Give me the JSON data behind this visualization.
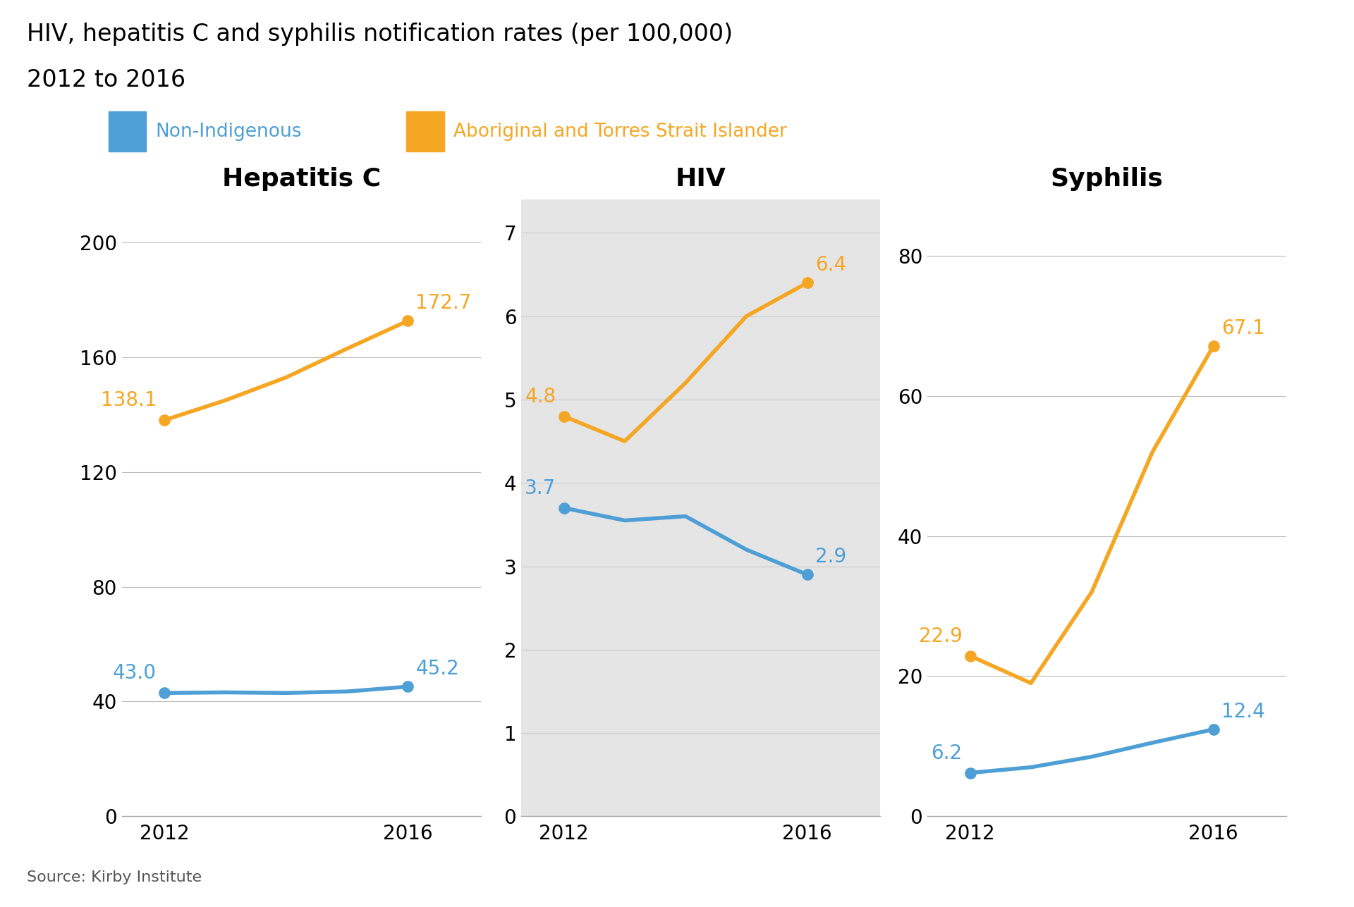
{
  "title_line1": "HIV, hepatitis C and syphilis notification rates (per 100,000)",
  "title_line2": "2012 to 2016",
  "source": "Source: Kirby Institute",
  "legend_labels": [
    "Non-Indigenous",
    "Aboriginal and Torres Strait Islander"
  ],
  "blue_color": "#4D9FD6",
  "orange_color": "#F5A623",
  "background_color": "#FFFFFF",
  "hiv_bg_color": "#E5E5E5",
  "charts": [
    {
      "title": "Hepatitis C",
      "x": [
        2012,
        2013,
        2014,
        2015,
        2016
      ],
      "blue_y": [
        43.0,
        43.2,
        43.0,
        43.5,
        45.2
      ],
      "orange_y": [
        138.1,
        145.0,
        153.0,
        163.0,
        172.7
      ],
      "blue_label_start": "43.0",
      "blue_label_end": "45.2",
      "orange_label_start": "138.1",
      "orange_label_end": "172.7",
      "ylim": [
        0,
        215
      ],
      "yticks": [
        0,
        40,
        80,
        120,
        160,
        200
      ],
      "highlighted": false
    },
    {
      "title": "HIV",
      "x": [
        2012,
        2013,
        2014,
        2015,
        2016
      ],
      "blue_y": [
        3.7,
        3.55,
        3.6,
        3.2,
        2.9
      ],
      "orange_y": [
        4.8,
        4.5,
        5.2,
        6.0,
        6.4
      ],
      "blue_label_start": "3.7",
      "blue_label_end": "2.9",
      "orange_label_start": "4.8",
      "orange_label_end": "6.4",
      "ylim": [
        0,
        7.4
      ],
      "yticks": [
        0,
        1,
        2,
        3,
        4,
        5,
        6,
        7
      ],
      "highlighted": true
    },
    {
      "title": "Syphilis",
      "x": [
        2012,
        2013,
        2014,
        2015,
        2016
      ],
      "blue_y": [
        6.2,
        7.0,
        8.5,
        10.5,
        12.4
      ],
      "orange_y": [
        22.9,
        19.0,
        32.0,
        52.0,
        67.1
      ],
      "blue_label_start": "6.2",
      "blue_label_end": "12.4",
      "orange_label_start": "22.9",
      "orange_label_end": "67.1",
      "ylim": [
        0,
        88
      ],
      "yticks": [
        0,
        20,
        40,
        60,
        80
      ],
      "highlighted": false
    }
  ]
}
